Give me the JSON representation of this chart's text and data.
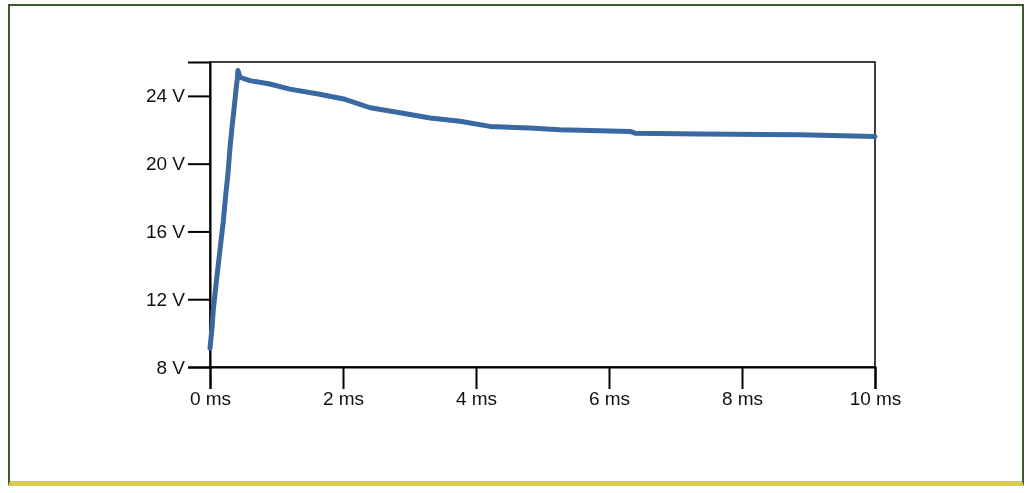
{
  "chart_data": {
    "type": "line",
    "x": [
      0,
      0.03,
      0.05,
      0.1,
      0.15,
      0.2,
      0.23,
      0.27,
      0.3,
      0.33,
      0.36,
      0.39,
      0.41,
      0.42,
      0.45,
      0.6,
      0.9,
      1.2,
      1.65,
      2.03,
      2.41,
      2.86,
      3.31,
      3.76,
      4.21,
      4.81,
      5.26,
      6.32,
      6.39,
      7.37,
      8.87,
      10
    ],
    "series": [
      {
        "color": "#3a68a0",
        "values": [
          9.1,
          10.3,
          11.4,
          13.2,
          14.9,
          16.6,
          17.9,
          19.4,
          20.9,
          22.1,
          23.2,
          24.3,
          25.0,
          25.5,
          25.1,
          24.9,
          24.7,
          24.4,
          24.1,
          23.8,
          23.3,
          23.0,
          22.7,
          22.5,
          22.2,
          22.1,
          22.0,
          21.9,
          21.8,
          21.75,
          21.7,
          21.6
        ]
      }
    ],
    "xlim": [
      0,
      10
    ],
    "xticks": [
      {
        "value": 0,
        "label": "0 ms"
      },
      {
        "value": 2,
        "label": "2 ms"
      },
      {
        "value": 4,
        "label": "4 ms"
      },
      {
        "value": 6,
        "label": "6 ms"
      },
      {
        "value": 8,
        "label": "8 ms"
      },
      {
        "value": 10,
        "label": "10 ms"
      }
    ],
    "ylim": [
      8,
      26
    ],
    "yticks": [
      {
        "value": 8,
        "label": "8 V"
      },
      {
        "value": 12,
        "label": "12 V"
      },
      {
        "value": 16,
        "label": "16 V"
      },
      {
        "value": 20,
        "label": "20 V"
      },
      {
        "value": 24,
        "label": "24 V"
      }
    ],
    "grid": false,
    "marker": "none",
    "line_style": "solid"
  }
}
